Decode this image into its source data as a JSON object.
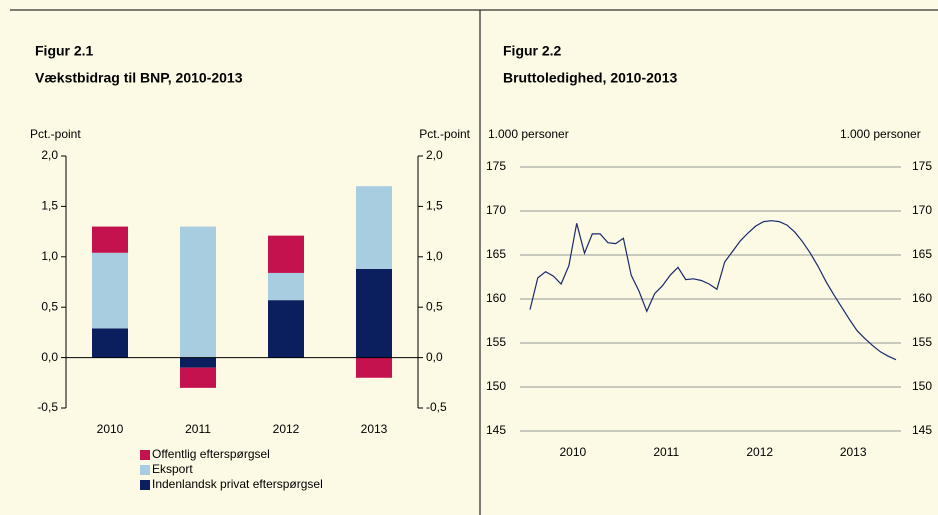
{
  "chart_data": [
    {
      "type": "bar",
      "label": "Figur 2.1",
      "title": "Vækstbidrag til BNP, 2010-2013",
      "ylabel": "Pct.-point",
      "y2label": "Pct.-point",
      "stacked": true,
      "categories": [
        "2010",
        "2011",
        "2012",
        "2013"
      ],
      "series": [
        {
          "name": "Indenlandsk privat efterspørgsel",
          "color": "#0b1f5e",
          "values": [
            0.29,
            -0.1,
            0.57,
            0.88
          ]
        },
        {
          "name": "Eksport",
          "color": "#a8cce0",
          "values": [
            0.75,
            1.3,
            0.27,
            0.82
          ]
        },
        {
          "name": "Offentlig efterspørgsel",
          "color": "#c4124f",
          "values": [
            0.26,
            -0.2,
            0.37,
            -0.2
          ]
        }
      ],
      "ylim": [
        -0.5,
        2.0
      ],
      "yticks": [
        {
          "value": -0.5,
          "label": "-0,5"
        },
        {
          "value": 0,
          "label": "0,0"
        },
        {
          "value": 0.5,
          "label": "0,5"
        },
        {
          "value": 1.0,
          "label": "1,0"
        },
        {
          "value": 1.5,
          "label": "1,5"
        },
        {
          "value": 2.0,
          "label": "2,0"
        }
      ],
      "y2lim": [
        -0.5,
        2.0
      ],
      "y2ticks": [
        {
          "value": -0.5,
          "label": "-0,5"
        },
        {
          "value": 0,
          "label": "0,0"
        },
        {
          "value": 0.5,
          "label": "0,5"
        },
        {
          "value": 1.0,
          "label": "1,0"
        },
        {
          "value": 1.5,
          "label": "1,5"
        },
        {
          "value": 2.0,
          "label": "2,0"
        }
      ]
    },
    {
      "type": "line",
      "label": "Figur 2.2",
      "title": "Bruttoledighed, 2010-2013",
      "ylabel": "1.000 personer",
      "y2label": "1.000 personer",
      "categories": [
        null,
        null,
        null,
        null,
        null,
        "2010",
        null,
        null,
        null,
        null,
        null,
        null,
        null,
        null,
        null,
        null,
        null,
        "2011",
        null,
        null,
        null,
        null,
        null,
        null,
        null,
        null,
        null,
        null,
        null,
        "2012",
        null,
        null,
        null,
        null,
        null,
        null,
        null,
        null,
        null,
        null,
        null,
        "2013",
        null,
        null,
        null,
        null,
        null,
        null
      ],
      "series": [
        {
          "name": "Bruttoledighed",
          "color": "#1a2a6c",
          "values": [
            158.8,
            162.4,
            163.1,
            162.6,
            161.7,
            163.8,
            168.6,
            165.2,
            167.4,
            167.4,
            166.4,
            166.3,
            166.9,
            162.7,
            160.9,
            158.6,
            160.6,
            161.5,
            162.7,
            163.6,
            162.2,
            162.3,
            162.1,
            161.7,
            161.1,
            164.2,
            165.4,
            166.6,
            167.5,
            168.3,
            168.8,
            168.9,
            168.8,
            168.4,
            167.6,
            166.5,
            165.2,
            163.7,
            162.0,
            160.5,
            159.1,
            157.7,
            156.4,
            155.5,
            154.7,
            154.0,
            153.5,
            153.1
          ]
        }
      ],
      "ylim": [
        145,
        175
      ],
      "yticks": [
        145,
        150,
        155,
        160,
        165,
        170,
        175
      ],
      "y2lim": [
        145,
        175
      ],
      "y2ticks": [
        145,
        150,
        155,
        160,
        165,
        170,
        175
      ],
      "grid": true
    }
  ]
}
